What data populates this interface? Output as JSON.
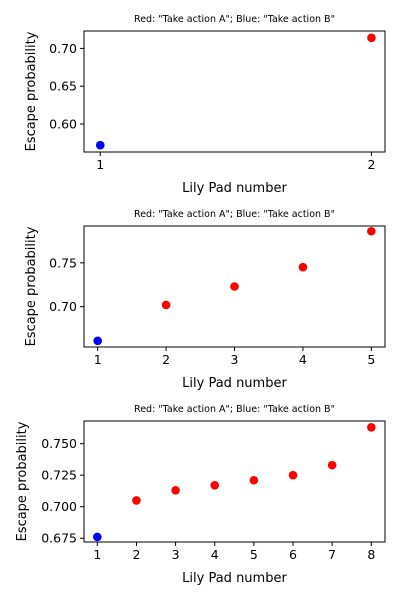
{
  "colors": {
    "action_a": "#ff0000",
    "action_b": "#0000ff",
    "axis": "#000000",
    "background": "#ffffff"
  },
  "chart_data": [
    {
      "type": "scatter",
      "title": "Red: \"Take action A\"; Blue: \"Take action B\"",
      "xlabel": "Lily Pad number",
      "ylabel": "Escape probability",
      "xlim": [
        0.94,
        2.05
      ],
      "ylim": [
        0.563,
        0.723
      ],
      "xticks": [
        1,
        2
      ],
      "yticks": [
        0.6,
        0.65,
        0.7
      ],
      "ytick_labels": [
        "0.60",
        "0.65",
        "0.70"
      ],
      "points": [
        {
          "x": 1,
          "y": 0.572,
          "series": "B"
        },
        {
          "x": 2,
          "y": 0.714,
          "series": "A"
        }
      ],
      "grid": false,
      "legend": "none"
    },
    {
      "type": "scatter",
      "title": "Red: \"Take action A\"; Blue: \"Take action B\"",
      "xlabel": "Lily Pad number",
      "ylabel": "Escape probability",
      "xlim": [
        0.8,
        5.2
      ],
      "ylim": [
        0.654,
        0.792
      ],
      "xticks": [
        1,
        2,
        3,
        4,
        5
      ],
      "yticks": [
        0.7,
        0.75
      ],
      "ytick_labels": [
        "0.70",
        "0.75"
      ],
      "points": [
        {
          "x": 1,
          "y": 0.661,
          "series": "B"
        },
        {
          "x": 2,
          "y": 0.702,
          "series": "A"
        },
        {
          "x": 3,
          "y": 0.723,
          "series": "A"
        },
        {
          "x": 4,
          "y": 0.745,
          "series": "A"
        },
        {
          "x": 5,
          "y": 0.786,
          "series": "A"
        }
      ],
      "grid": false,
      "legend": "none"
    },
    {
      "type": "scatter",
      "title": "Red: \"Take action A\"; Blue: \"Take action B\"",
      "xlabel": "Lily Pad number",
      "ylabel": "Escape probability",
      "xlim": [
        0.66,
        8.35
      ],
      "ylim": [
        0.672,
        0.768
      ],
      "xticks": [
        1,
        2,
        3,
        4,
        5,
        6,
        7,
        8
      ],
      "yticks": [
        0.675,
        0.7,
        0.725,
        0.75
      ],
      "ytick_labels": [
        "0.675",
        "0.700",
        "0.725",
        "0.750"
      ],
      "points": [
        {
          "x": 1,
          "y": 0.676,
          "series": "B"
        },
        {
          "x": 2,
          "y": 0.705,
          "series": "A"
        },
        {
          "x": 3,
          "y": 0.713,
          "series": "A"
        },
        {
          "x": 4,
          "y": 0.717,
          "series": "A"
        },
        {
          "x": 5,
          "y": 0.721,
          "series": "A"
        },
        {
          "x": 6,
          "y": 0.725,
          "series": "A"
        },
        {
          "x": 7,
          "y": 0.733,
          "series": "A"
        },
        {
          "x": 8,
          "y": 0.763,
          "series": "A"
        }
      ],
      "grid": false,
      "legend": "none"
    }
  ]
}
